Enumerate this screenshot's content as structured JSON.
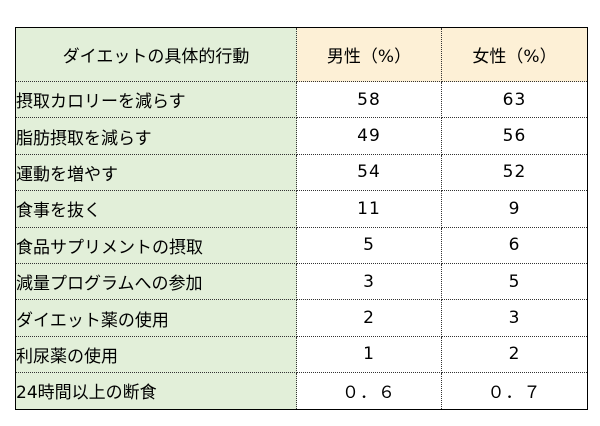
{
  "table": {
    "headers": [
      "ダイエットの具体的行動",
      "男性（%）",
      "女性（%）"
    ],
    "rows": [
      {
        "item": "摂取カロリーを減らす",
        "male": "58",
        "female": "63"
      },
      {
        "item": "脂肪摂取を減らす",
        "male": "49",
        "female": "56"
      },
      {
        "item": "運動を増やす",
        "male": "54",
        "female": "52"
      },
      {
        "item": "食事を抜く",
        "male": "11",
        "female": "9"
      },
      {
        "item": "食品サプリメントの摂取",
        "male": "5",
        "female": "6"
      },
      {
        "item": "減量プログラムへの参加",
        "male": "3",
        "female": "5"
      },
      {
        "item": "ダイエット薬の使用",
        "male": "2",
        "female": "3"
      },
      {
        "item": "利尿薬の使用",
        "male": "1",
        "female": "2"
      },
      {
        "item": "24時間以上の断食",
        "male": "０．６",
        "female": "０．７"
      }
    ],
    "colors": {
      "item_column_bg": "#e2efd9",
      "value_header_bg": "#fdf0d6",
      "border": "#000000"
    }
  }
}
